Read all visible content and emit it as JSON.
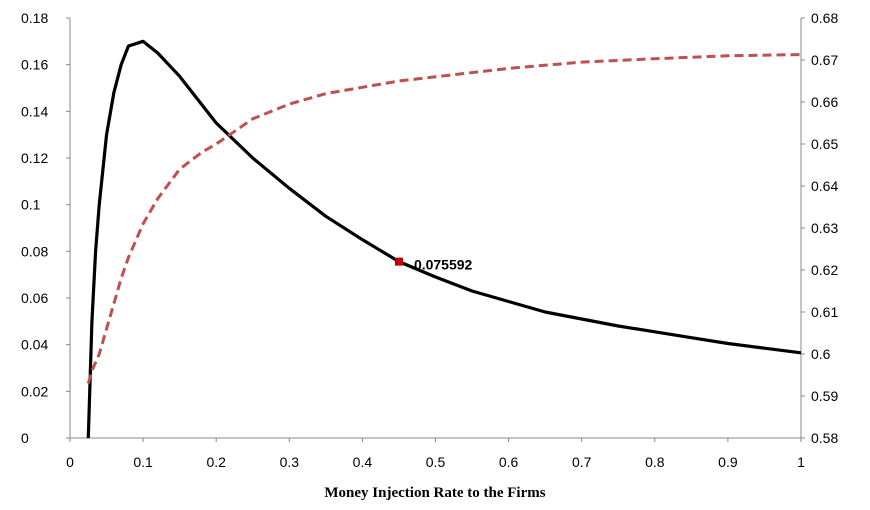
{
  "chart_data": {
    "type": "line",
    "title": "",
    "xlabel": "Money Injection Rate to the Firms",
    "ylabel": "",
    "y2label": "",
    "xlim": [
      0,
      1
    ],
    "ylim": [
      0,
      0.18
    ],
    "y2lim": [
      0.58,
      0.68
    ],
    "x_ticks": [
      "0",
      "0.1",
      "0.2",
      "0.3",
      "0.4",
      "0.5",
      "0.6",
      "0.7",
      "0.8",
      "0.9",
      "1"
    ],
    "y_ticks": [
      "0",
      "0.02",
      "0.04",
      "0.06",
      "0.08",
      "0.1",
      "0.12",
      "0.14",
      "0.16",
      "0.18"
    ],
    "y2_ticks": [
      "0.58",
      "0.59",
      "0.6",
      "0.61",
      "0.62",
      "0.63",
      "0.64",
      "0.65",
      "0.66",
      "0.67",
      "0.68"
    ],
    "grid": false,
    "series": [
      {
        "axis": "left",
        "style": "solid",
        "color": "#000000",
        "x": [
          0.025,
          0.027,
          0.03,
          0.035,
          0.04,
          0.05,
          0.06,
          0.07,
          0.08,
          0.09,
          0.1,
          0.12,
          0.15,
          0.2,
          0.25,
          0.3,
          0.35,
          0.4,
          0.45,
          0.5,
          0.55,
          0.6,
          0.65,
          0.7,
          0.75,
          0.8,
          0.85,
          0.9,
          0.95,
          1.0
        ],
        "y": [
          0.0,
          0.02,
          0.05,
          0.08,
          0.1,
          0.13,
          0.148,
          0.16,
          0.168,
          0.169,
          0.17,
          0.165,
          0.155,
          0.135,
          0.12,
          0.107,
          0.095,
          0.085,
          0.0756,
          0.069,
          0.063,
          0.0585,
          0.054,
          0.051,
          0.048,
          0.0455,
          0.043,
          0.0405,
          0.0385,
          0.0365
        ]
      },
      {
        "axis": "right",
        "style": "dashed",
        "color": "#c0504d",
        "x": [
          0.025,
          0.03,
          0.04,
          0.05,
          0.06,
          0.07,
          0.08,
          0.1,
          0.12,
          0.15,
          0.18,
          0.2,
          0.25,
          0.3,
          0.35,
          0.4,
          0.45,
          0.5,
          0.6,
          0.7,
          0.8,
          0.9,
          1.0
        ],
        "y": [
          0.593,
          0.596,
          0.6,
          0.606,
          0.612,
          0.618,
          0.623,
          0.631,
          0.637,
          0.644,
          0.648,
          0.65,
          0.656,
          0.6595,
          0.662,
          0.6635,
          0.665,
          0.666,
          0.668,
          0.6695,
          0.6703,
          0.671,
          0.6713
        ]
      }
    ],
    "annotations": [
      {
        "x": 0.45,
        "y": 0.075592,
        "axis": "left",
        "label": "0.075592",
        "marker_color": "#c00000"
      }
    ]
  }
}
